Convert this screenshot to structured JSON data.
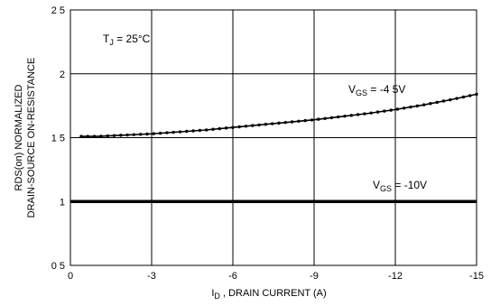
{
  "chart_data": {
    "type": "line",
    "xlabel_main": "I",
    "xlabel_sub": "D",
    "xlabel_rest": " , DRAIN CURRENT (A)",
    "ylabel_lines": [
      "RDS(on)  NORMALIZED",
      "DRAIN-SOURCE ON-RESISTANCE"
    ],
    "xlim": [
      0,
      -15
    ],
    "ylim": [
      0.5,
      2.5
    ],
    "x_ticks": [
      0,
      -3,
      -6,
      -9,
      -12,
      -15
    ],
    "x_tick_labels": [
      "0",
      "-3",
      "-6",
      "-9",
      "-12",
      "-15"
    ],
    "y_ticks": [
      0.5,
      1,
      1.5,
      2,
      2.5
    ],
    "y_tick_labels": [
      "0 5",
      "1",
      "1 5",
      "2",
      "2 5"
    ],
    "grid": true,
    "annotations": {
      "tj": {
        "main": "T",
        "sub": "J",
        "rest": " = 25°C"
      },
      "vgs45": {
        "main": "V",
        "sub": "GS",
        "rest": " = -4 5V"
      },
      "vgs10": {
        "main": "V",
        "sub": "GS",
        "rest": " = -10V"
      }
    },
    "series": [
      {
        "color": "#000000",
        "x": [
          -0.4,
          -1,
          -2,
          -3,
          -4,
          -5,
          -6,
          -7,
          -8,
          -9,
          -10,
          -11,
          -12,
          -13,
          -14,
          -15
        ],
        "y": [
          1.51,
          1.51,
          1.52,
          1.53,
          1.545,
          1.56,
          1.58,
          1.6,
          1.62,
          1.64,
          1.665,
          1.69,
          1.72,
          1.755,
          1.795,
          1.84
        ]
      },
      {
        "color": "#000000",
        "x": [
          0,
          -3,
          -6,
          -9,
          -12,
          -15
        ],
        "y": [
          1.0,
          1.0,
          1.0,
          1.0,
          1.0,
          1.0
        ]
      }
    ]
  }
}
